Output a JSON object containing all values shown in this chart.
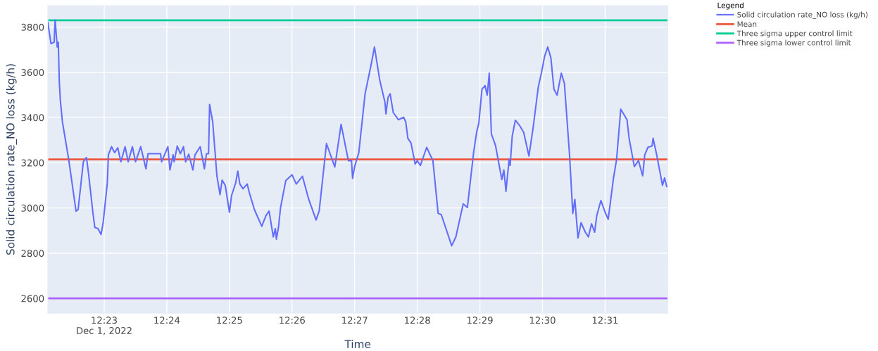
{
  "chart_data": {
    "type": "line",
    "xlabel": "Time",
    "ylabel": "Solid circulation rate_NO loss (kg/h)",
    "legend_title": "Legend",
    "legend": "right",
    "grid": true,
    "xlim": [
      "2022-12-01T12:22:06",
      "2022-12-01T12:32:00"
    ],
    "xticks": [
      {
        "value": "2022-12-01T12:23",
        "label": "12:23\nDec 1, 2022"
      },
      {
        "value": "2022-12-01T12:24",
        "label": "12:24"
      },
      {
        "value": "2022-12-01T12:25",
        "label": "12:25"
      },
      {
        "value": "2022-12-01T12:26",
        "label": "12:26"
      },
      {
        "value": "2022-12-01T12:27",
        "label": "12:27"
      },
      {
        "value": "2022-12-01T12:28",
        "label": "12:28"
      },
      {
        "value": "2022-12-01T12:29",
        "label": "12:29"
      },
      {
        "value": "2022-12-01T12:30",
        "label": "12:30"
      },
      {
        "value": "2022-12-01T12:31",
        "label": "12:31"
      }
    ],
    "ylim": [
      2535,
      3895
    ],
    "yticks": [
      2600,
      2800,
      3000,
      3200,
      3400,
      3600,
      3800
    ],
    "series": [
      {
        "name": "Solid circulation rate_NO loss (kg/h)",
        "color": "#636efa",
        "x": [
          "2022-12-01T12:22:06",
          "2022-12-01T12:22:09",
          "2022-12-01T12:22:12",
          "2022-12-01T12:22:13",
          "2022-12-01T12:22:15",
          "2022-12-01T12:22:16",
          "2022-12-01T12:22:17",
          "2022-12-01T12:22:18",
          "2022-12-01T12:22:20",
          "2022-12-01T12:22:26",
          "2022-12-01T12:22:33",
          "2022-12-01T12:22:35",
          "2022-12-01T12:22:40",
          "2022-12-01T12:22:43",
          "2022-12-01T12:22:45",
          "2022-12-01T12:22:49",
          "2022-12-01T12:22:51",
          "2022-12-01T12:22:54",
          "2022-12-01T12:22:57",
          "2022-12-01T12:22:59",
          "2022-12-01T12:23:03",
          "2022-12-01T12:23:04",
          "2022-12-01T12:23:07",
          "2022-12-01T12:23:10",
          "2022-12-01T12:23:13",
          "2022-12-01T12:23:16",
          "2022-12-01T12:23:20",
          "2022-12-01T12:23:23",
          "2022-12-01T12:23:27",
          "2022-12-01T12:23:30",
          "2022-12-01T12:23:35",
          "2022-12-01T12:23:40",
          "2022-12-01T12:23:42",
          "2022-12-01T12:23:54",
          "2022-12-01T12:23:55",
          "2022-12-01T12:24:01",
          "2022-12-01T12:24:03",
          "2022-12-01T12:24:06",
          "2022-12-01T12:24:07",
          "2022-12-01T12:24:10",
          "2022-12-01T12:24:13",
          "2022-12-01T12:24:16",
          "2022-12-01T12:24:18",
          "2022-12-01T12:24:21",
          "2022-12-01T12:24:25",
          "2022-12-01T12:24:27",
          "2022-12-01T12:24:32",
          "2022-12-01T12:24:36",
          "2022-12-01T12:24:38",
          "2022-12-01T12:24:40",
          "2022-12-01T12:24:41",
          "2022-12-01T12:24:44",
          "2022-12-01T12:24:48",
          "2022-12-01T12:24:51",
          "2022-12-01T12:24:53",
          "2022-12-01T12:24:56",
          "2022-12-01T12:25:00",
          "2022-12-01T12:25:02",
          "2022-12-01T12:25:06",
          "2022-12-01T12:25:08",
          "2022-12-01T12:25:10",
          "2022-12-01T12:25:13",
          "2022-12-01T12:25:17",
          "2022-12-01T12:25:19",
          "2022-12-01T12:25:24",
          "2022-12-01T12:25:31",
          "2022-12-01T12:25:35",
          "2022-12-01T12:25:38",
          "2022-12-01T12:25:42",
          "2022-12-01T12:25:44",
          "2022-12-01T12:25:45",
          "2022-12-01T12:25:47",
          "2022-12-01T12:25:49",
          "2022-12-01T12:25:54",
          "2022-12-01T12:26:00",
          "2022-12-01T12:26:04",
          "2022-12-01T12:26:10",
          "2022-12-01T12:26:16",
          "2022-12-01T12:26:23",
          "2022-12-01T12:26:26",
          "2022-12-01T12:26:33",
          "2022-12-01T12:26:41",
          "2022-12-01T12:26:47",
          "2022-12-01T12:26:54",
          "2022-12-01T12:26:57",
          "2022-12-01T12:26:58",
          "2022-12-01T12:27:00",
          "2022-12-01T12:27:04",
          "2022-12-01T12:27:10",
          "2022-12-01T12:27:16",
          "2022-12-01T12:27:19",
          "2022-12-01T12:27:24",
          "2022-12-01T12:27:29",
          "2022-12-01T12:27:30",
          "2022-12-01T12:27:32",
          "2022-12-01T12:27:34",
          "2022-12-01T12:27:37",
          "2022-12-01T12:27:42",
          "2022-12-01T12:27:47",
          "2022-12-01T12:27:49",
          "2022-12-01T12:27:51",
          "2022-12-01T12:27:54",
          "2022-12-01T12:27:58",
          "2022-12-01T12:28:00",
          "2022-12-01T12:28:03",
          "2022-12-01T12:28:09",
          "2022-12-01T12:28:15",
          "2022-12-01T12:28:20",
          "2022-12-01T12:28:23",
          "2022-12-01T12:28:33",
          "2022-12-01T12:28:37",
          "2022-12-01T12:28:44",
          "2022-12-01T12:28:48",
          "2022-12-01T12:28:54",
          "2022-12-01T12:28:57",
          "2022-12-01T12:28:59",
          "2022-12-01T12:29:02",
          "2022-12-01T12:29:05",
          "2022-12-01T12:29:07",
          "2022-12-01T12:29:09",
          "2022-12-01T12:29:11",
          "2022-12-01T12:29:15",
          "2022-12-01T12:29:21",
          "2022-12-01T12:29:23",
          "2022-12-01T12:29:25",
          "2022-12-01T12:29:28",
          "2022-12-01T12:29:29",
          "2022-12-01T12:29:31",
          "2022-12-01T12:29:34",
          "2022-12-01T12:29:38",
          "2022-12-01T12:29:42",
          "2022-12-01T12:29:47",
          "2022-12-01T12:29:51",
          "2022-12-01T12:29:56",
          "2022-12-01T12:29:59",
          "2022-12-01T12:30:02",
          "2022-12-01T12:30:05",
          "2022-12-01T12:30:08",
          "2022-12-01T12:30:11",
          "2022-12-01T12:30:14",
          "2022-12-01T12:30:18",
          "2022-12-01T12:30:21",
          "2022-12-01T12:30:26",
          "2022-12-01T12:30:29",
          "2022-12-01T12:30:31",
          "2022-12-01T12:30:34",
          "2022-12-01T12:30:37",
          "2022-12-01T12:30:41",
          "2022-12-01T12:30:44",
          "2022-12-01T12:30:47",
          "2022-12-01T12:30:50",
          "2022-12-01T12:30:52",
          "2022-12-01T12:30:56",
          "2022-12-01T12:31:00",
          "2022-12-01T12:31:03",
          "2022-12-01T12:31:08",
          "2022-12-01T12:31:11",
          "2022-12-01T12:31:15",
          "2022-12-01T12:31:21",
          "2022-12-01T12:31:23",
          "2022-12-01T12:31:28",
          "2022-12-01T12:31:32",
          "2022-12-01T12:31:36",
          "2022-12-01T12:31:38",
          "2022-12-01T12:31:41",
          "2022-12-01T12:31:45",
          "2022-12-01T12:31:46",
          "2022-12-01T12:31:49",
          "2022-12-01T12:31:55",
          "2022-12-01T12:31:57",
          "2022-12-01T12:31:59"
        ],
        "values": [
          3820,
          3727,
          3733,
          3831,
          3712,
          3733,
          3556,
          3474,
          3380,
          3214,
          2986,
          2992,
          3204,
          3223,
          3152,
          2986,
          2914,
          2909,
          2883,
          2935,
          3111,
          3235,
          3271,
          3245,
          3266,
          3204,
          3271,
          3204,
          3271,
          3204,
          3271,
          3173,
          3240,
          3240,
          3204,
          3271,
          3168,
          3235,
          3204,
          3274,
          3240,
          3271,
          3204,
          3238,
          3168,
          3235,
          3271,
          3173,
          3240,
          3240,
          3458,
          3380,
          3142,
          3059,
          3123,
          3100,
          2981,
          3054,
          3111,
          3163,
          3106,
          3085,
          3106,
          3069,
          2992,
          2919,
          2966,
          2986,
          2872,
          2909,
          2862,
          2914,
          3002,
          3121,
          3147,
          3106,
          3140,
          3038,
          2947,
          2986,
          3285,
          3181,
          3370,
          3209,
          3209,
          3131,
          3183,
          3245,
          3505,
          3639,
          3712,
          3567,
          3468,
          3416,
          3489,
          3505,
          3422,
          3390,
          3401,
          3380,
          3308,
          3287,
          3194,
          3209,
          3188,
          3268,
          3209,
          2976,
          2971,
          2833,
          2872,
          3018,
          3002,
          3245,
          3339,
          3375,
          3525,
          3541,
          3499,
          3596,
          3328,
          3276,
          3126,
          3168,
          3074,
          3214,
          3188,
          3318,
          3388,
          3365,
          3334,
          3230,
          3354,
          3536,
          3598,
          3670,
          3712,
          3665,
          3525,
          3499,
          3596,
          3551,
          3230,
          2976,
          3038,
          2867,
          2935,
          2893,
          2872,
          2930,
          2893,
          2966,
          3033,
          2981,
          2950,
          3131,
          3214,
          3437,
          3390,
          3308,
          3183,
          3209,
          3142,
          3235,
          3268,
          3274,
          3308,
          3245,
          3100,
          3133,
          3095
        ]
      }
    ],
    "ref_lines": [
      {
        "axis": "y",
        "value": 3215,
        "label": "Mean",
        "color": "#ef553b"
      },
      {
        "axis": "y",
        "value": 3830,
        "label": "Three sigma upper control limit",
        "color": "#00cc96"
      },
      {
        "axis": "y",
        "value": 2600,
        "label": "Three sigma lower control limit",
        "color": "#ab63fa"
      }
    ]
  }
}
